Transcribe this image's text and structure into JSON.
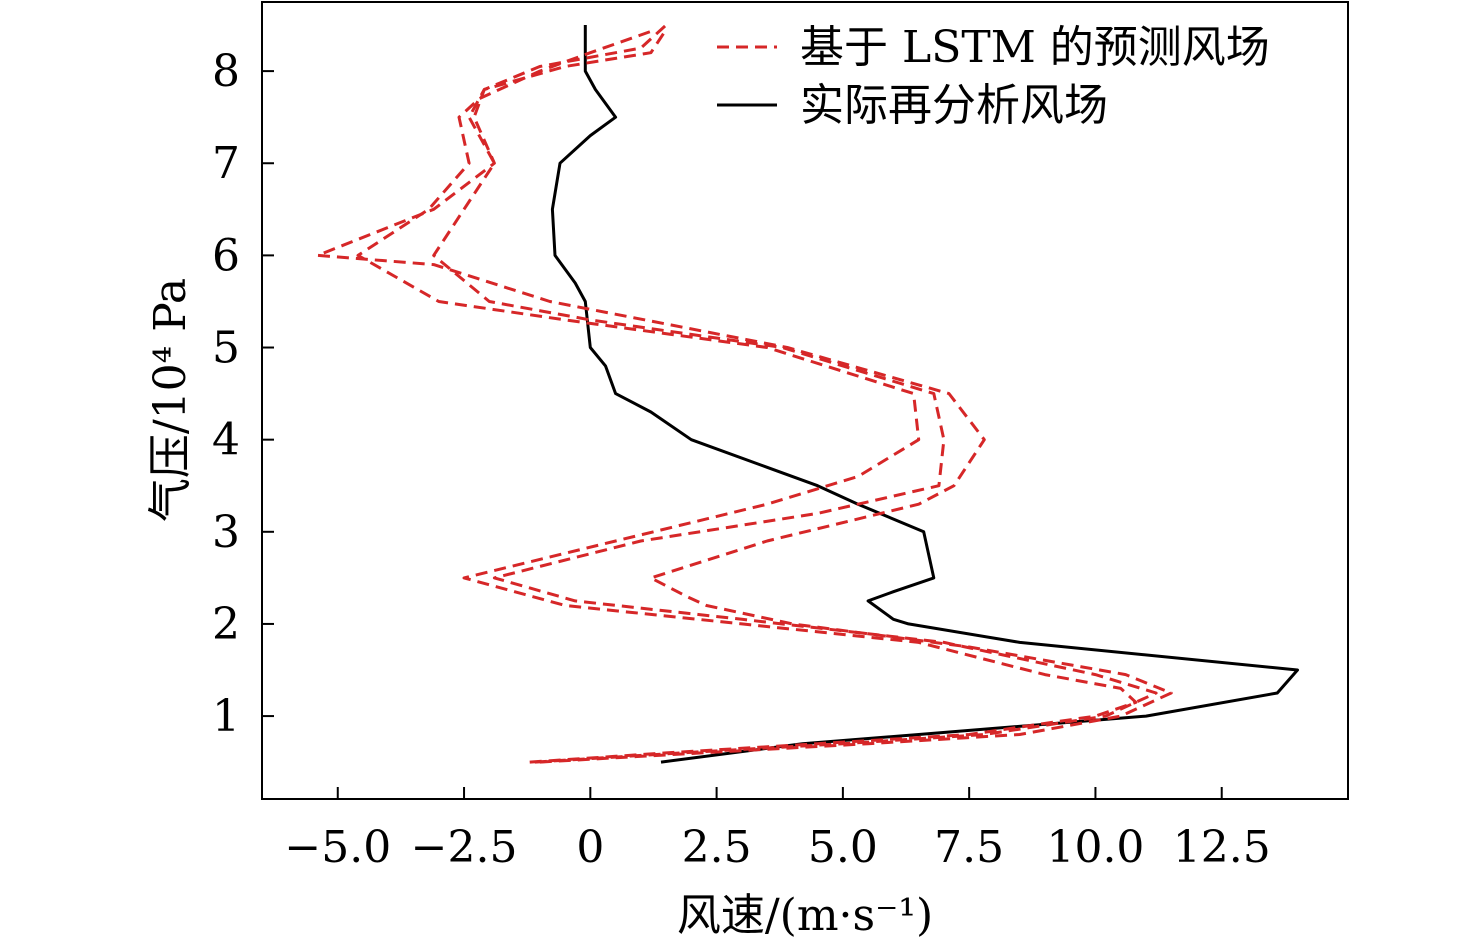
{
  "chart_data": {
    "type": "line",
    "title": "",
    "xlabel": "风速/(m·s⁻¹)",
    "ylabel": "气压/10⁴ Pa",
    "xlim": [
      -6.5,
      15
    ],
    "ylim": [
      0.1,
      8.75
    ],
    "xticks": [
      -5,
      -2.5,
      0,
      2.5,
      5,
      7.5,
      10,
      12.5
    ],
    "xtick_labels": [
      "−5.0",
      "−2.5",
      "0",
      "2.5",
      "5.0",
      "7.5",
      "10.0",
      "12.5"
    ],
    "yticks": [
      1,
      2,
      3,
      4,
      5,
      6,
      7,
      8
    ],
    "ytick_labels": [
      "1",
      "2",
      "3",
      "4",
      "5",
      "6",
      "7",
      "8"
    ],
    "grid": false,
    "legend_position": "top-right",
    "legend": [
      {
        "label": "基于 LSTM 的预测风场",
        "style": "dashed",
        "color": "#d62728"
      },
      {
        "label": "实际再分析风场",
        "style": "solid",
        "color": "#000000"
      }
    ],
    "series": [
      {
        "name": "实际再分析风场",
        "style": "solid",
        "color": "#000000",
        "points": [
          [
            1.4,
            0.5
          ],
          [
            4.2,
            0.7
          ],
          [
            6.5,
            0.8
          ],
          [
            11.0,
            1.0
          ],
          [
            13.6,
            1.25
          ],
          [
            14.0,
            1.5
          ],
          [
            8.5,
            1.8
          ],
          [
            6.3,
            2.0
          ],
          [
            6.0,
            2.05
          ],
          [
            5.5,
            2.25
          ],
          [
            6.0,
            2.35
          ],
          [
            6.8,
            2.5
          ],
          [
            6.6,
            3.0
          ],
          [
            5.3,
            3.3
          ],
          [
            4.5,
            3.5
          ],
          [
            3.5,
            3.7
          ],
          [
            2.0,
            4.0
          ],
          [
            1.2,
            4.3
          ],
          [
            0.5,
            4.5
          ],
          [
            0.3,
            4.8
          ],
          [
            0.0,
            5.0
          ],
          [
            -0.1,
            5.5
          ],
          [
            -0.3,
            5.7
          ],
          [
            -0.7,
            6.0
          ],
          [
            -0.75,
            6.5
          ],
          [
            -0.6,
            7.0
          ],
          [
            0.0,
            7.3
          ],
          [
            0.5,
            7.5
          ],
          [
            0.1,
            7.8
          ],
          [
            -0.1,
            8.0
          ],
          [
            -0.1,
            8.5
          ]
        ]
      },
      {
        "name": "基于 LSTM 的预测风场 (1)",
        "style": "dashed",
        "color": "#d62728",
        "points": [
          [
            -1.2,
            0.5
          ],
          [
            1.5,
            0.6
          ],
          [
            4.5,
            0.7
          ],
          [
            7.5,
            0.8
          ],
          [
            10.0,
            1.0
          ],
          [
            10.8,
            1.15
          ],
          [
            10.5,
            1.3
          ],
          [
            9.0,
            1.45
          ],
          [
            6.5,
            1.8
          ],
          [
            3.0,
            2.0
          ],
          [
            -0.5,
            2.2
          ],
          [
            -2.5,
            2.5
          ],
          [
            0.5,
            2.9
          ],
          [
            3.5,
            3.3
          ],
          [
            5.3,
            3.6
          ],
          [
            6.5,
            4.0
          ],
          [
            6.4,
            4.5
          ],
          [
            3.5,
            5.0
          ],
          [
            -0.5,
            5.3
          ],
          [
            -3.0,
            5.5
          ],
          [
            -4.6,
            6.0
          ],
          [
            -3.2,
            6.5
          ],
          [
            -2.4,
            7.0
          ],
          [
            -2.6,
            7.5
          ],
          [
            -2.2,
            7.7
          ],
          [
            -1.0,
            8.0
          ],
          [
            0.0,
            8.2
          ],
          [
            1.3,
            8.45
          ]
        ]
      },
      {
        "name": "基于 LSTM 的预测风场 (2)",
        "style": "dashed",
        "color": "#d62728",
        "points": [
          [
            -1.1,
            0.5
          ],
          [
            1.8,
            0.6
          ],
          [
            5.0,
            0.7
          ],
          [
            7.8,
            0.8
          ],
          [
            10.2,
            1.0
          ],
          [
            11.2,
            1.25
          ],
          [
            10.0,
            1.45
          ],
          [
            7.0,
            1.8
          ],
          [
            3.0,
            2.05
          ],
          [
            -0.3,
            2.25
          ],
          [
            -1.9,
            2.5
          ],
          [
            1.0,
            2.9
          ],
          [
            4.5,
            3.2
          ],
          [
            6.9,
            3.5
          ],
          [
            7.0,
            4.0
          ],
          [
            6.8,
            4.5
          ],
          [
            3.8,
            5.0
          ],
          [
            0.0,
            5.3
          ],
          [
            -2.0,
            5.5
          ],
          [
            -3.1,
            6.0
          ],
          [
            -2.5,
            6.5
          ],
          [
            -1.9,
            7.0
          ],
          [
            -2.4,
            7.5
          ],
          [
            -2.1,
            7.8
          ],
          [
            -1.0,
            8.05
          ],
          [
            1.0,
            8.25
          ],
          [
            1.5,
            8.5
          ]
        ]
      },
      {
        "name": "基于 LSTM 的预测风场 (3)",
        "style": "dashed",
        "color": "#d62728",
        "points": [
          [
            -1.0,
            0.5
          ],
          [
            2.2,
            0.6
          ],
          [
            5.5,
            0.7
          ],
          [
            8.5,
            0.8
          ],
          [
            10.5,
            1.0
          ],
          [
            11.5,
            1.25
          ],
          [
            10.6,
            1.45
          ],
          [
            7.5,
            1.75
          ],
          [
            4.0,
            2.0
          ],
          [
            2.3,
            2.2
          ],
          [
            1.9,
            2.3
          ],
          [
            1.2,
            2.5
          ],
          [
            3.5,
            2.9
          ],
          [
            6.5,
            3.3
          ],
          [
            7.2,
            3.5
          ],
          [
            7.8,
            4.0
          ],
          [
            7.1,
            4.5
          ],
          [
            3.9,
            5.0
          ],
          [
            -0.8,
            5.5
          ],
          [
            -3.1,
            5.9
          ],
          [
            -5.4,
            6.0
          ],
          [
            -3.1,
            6.5
          ],
          [
            -1.9,
            7.0
          ],
          [
            -2.3,
            7.5
          ],
          [
            -2.1,
            7.8
          ],
          [
            -0.5,
            8.05
          ],
          [
            1.2,
            8.2
          ],
          [
            1.5,
            8.45
          ]
        ]
      }
    ]
  }
}
